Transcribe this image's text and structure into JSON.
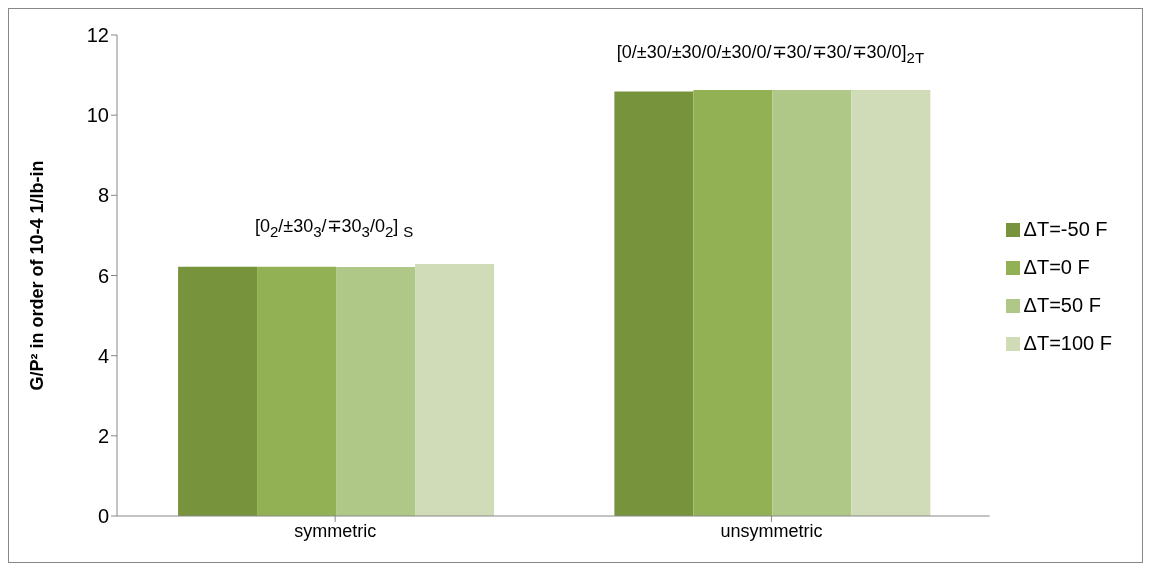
{
  "chart_data": {
    "type": "bar",
    "ylabel": "G/P² in order of 10-4 1/lb-in",
    "categories": [
      "symmetric",
      "unsymmetric"
    ],
    "series": [
      {
        "name": "ΔT=-50 F",
        "color": "#77933c",
        "values": [
          6.22,
          10.59
        ]
      },
      {
        "name": "ΔT=0 F",
        "color": "#92b054",
        "values": [
          6.22,
          10.63
        ]
      },
      {
        "name": "ΔT=50 F",
        "color": "#afc787",
        "values": [
          6.21,
          10.63
        ]
      },
      {
        "name": "ΔT=100 F",
        "color": "#cfdcb7",
        "values": [
          6.29,
          10.63
        ]
      }
    ],
    "ylim": [
      0,
      12
    ],
    "yticks": [
      0,
      2,
      4,
      6,
      8,
      10,
      12
    ],
    "grid": false,
    "legend": "right",
    "annotations": [
      "[0$_{2}$/±30$_{3}$/∓30$_{3}$/0$_{2}$] $_{S}$",
      "[0/±30/±30/0/±30/0/∓30/∓30/∓30/0]$_{2T}$"
    ]
  }
}
